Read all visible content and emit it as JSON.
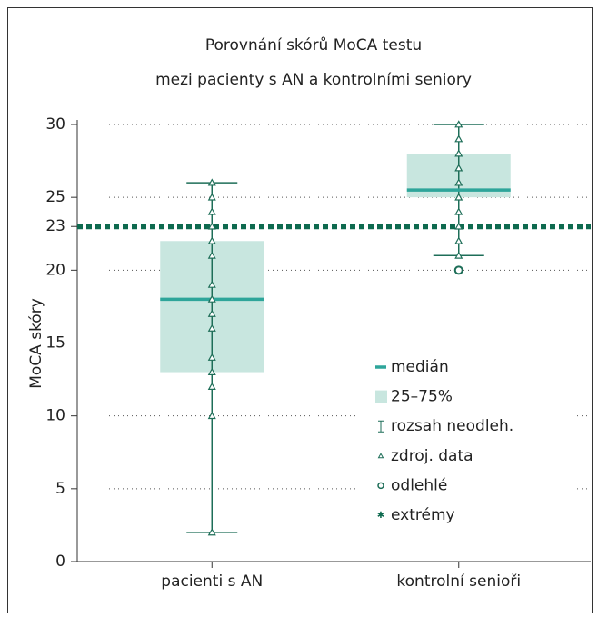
{
  "chart_data": {
    "type": "box",
    "title": [
      "Porovnání skórů MoCA testu",
      "mezi pacienty s AN a kontrolními seniory"
    ],
    "y_label": "MoCA skóry",
    "categories": [
      "pacienti s AN",
      "kontrolní senioři"
    ],
    "ylim": [
      0,
      30
    ],
    "yticks": [
      0,
      5,
      10,
      15,
      20,
      23,
      25,
      30
    ],
    "grid": true,
    "reference_line": 23,
    "colors": {
      "box": "#c8e6df",
      "median": "#2ea59a",
      "whisker": "#1e6e58",
      "reference": "#0e6a4f"
    },
    "boxes": [
      {
        "whisker_low": 2,
        "q1": 13,
        "median": 18,
        "q3": 22,
        "whisker_high": 26,
        "points": [
          26,
          25,
          24,
          23,
          22,
          21,
          19,
          18,
          17,
          16,
          14,
          13,
          12,
          10,
          2
        ],
        "outliers": []
      },
      {
        "whisker_low": 21,
        "q1": 25,
        "median": 25.5,
        "q3": 28,
        "whisker_high": 30,
        "points": [
          30,
          29,
          28,
          27,
          26,
          25,
          24,
          23,
          22,
          21
        ],
        "outliers": [
          20
        ]
      }
    ],
    "legend": [
      "medián",
      "25–75%",
      "rozsah neodleh.",
      "zdroj. data",
      "odlehlé",
      "extrémy"
    ]
  }
}
